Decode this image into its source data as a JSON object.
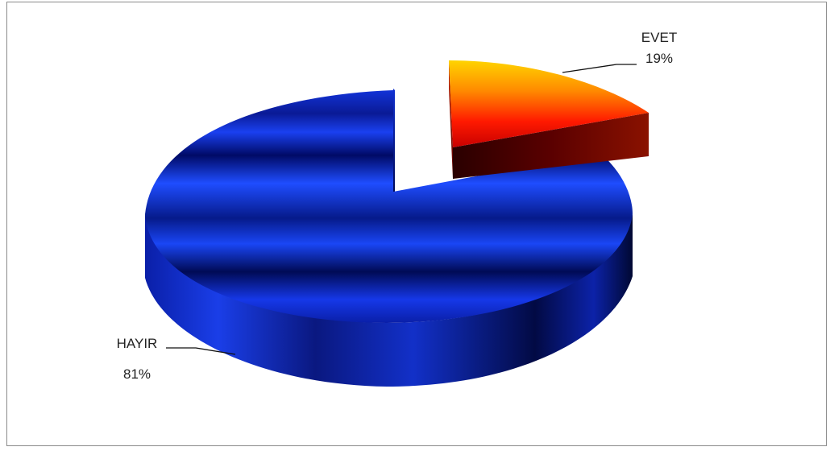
{
  "chart_data": {
    "type": "pie",
    "title": "",
    "three_d": true,
    "slices": [
      {
        "label": "EVET",
        "value": 19,
        "percent_label": "19%",
        "exploded": true,
        "colors": [
          "#ffd400",
          "#ff7a00",
          "#e60000",
          "#6e0000"
        ]
      },
      {
        "label": "HAYIR",
        "value": 81,
        "percent_label": "81%",
        "exploded": false,
        "colors": [
          "#1f4dff",
          "#0a1fa8",
          "#000a55"
        ]
      }
    ]
  }
}
